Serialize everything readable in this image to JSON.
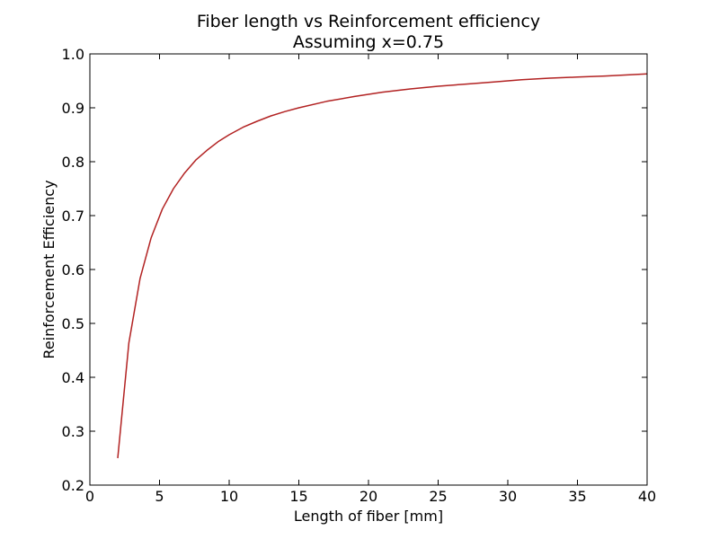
{
  "chart_data": {
    "type": "line",
    "title": "Fiber length vs Reinforcement efficiency",
    "subtitle": "Assuming x=0.75",
    "xlabel": "Length of fiber [mm]",
    "ylabel": "Reinforcement Efficiency",
    "xlim": [
      0,
      40
    ],
    "ylim": [
      0.2,
      1.0
    ],
    "xticks": [
      0,
      5,
      10,
      15,
      20,
      25,
      30,
      35,
      40
    ],
    "yticks": [
      0.2,
      0.3,
      0.4,
      0.5,
      0.6,
      0.7,
      0.8,
      0.9,
      1.0
    ],
    "xtick_labels": [
      "0",
      "5",
      "10",
      "15",
      "20",
      "25",
      "30",
      "35",
      "40"
    ],
    "ytick_labels": [
      "0.2",
      "0.3",
      "0.4",
      "0.5",
      "0.6",
      "0.7",
      "0.8",
      "0.9",
      "1.0"
    ],
    "grid": false,
    "series": [
      {
        "color": "#b22222",
        "x": [
          2.0,
          2.8,
          3.6,
          4.4,
          5.2,
          6.0,
          6.8,
          7.6,
          8.4,
          9.2,
          10.0,
          11.0,
          12.0,
          13.0,
          14.0,
          15.0,
          17.0,
          19.0,
          21.0,
          23.0,
          25.0,
          27.0,
          29.0,
          31.0,
          33.0,
          35.0,
          37.0,
          40.0
        ],
        "y": [
          0.25,
          0.464,
          0.583,
          0.659,
          0.712,
          0.75,
          0.779,
          0.803,
          0.821,
          0.837,
          0.85,
          0.864,
          0.875,
          0.885,
          0.893,
          0.9,
          0.912,
          0.921,
          0.929,
          0.935,
          0.94,
          0.944,
          0.948,
          0.952,
          0.955,
          0.957,
          0.959,
          0.963
        ]
      }
    ]
  }
}
